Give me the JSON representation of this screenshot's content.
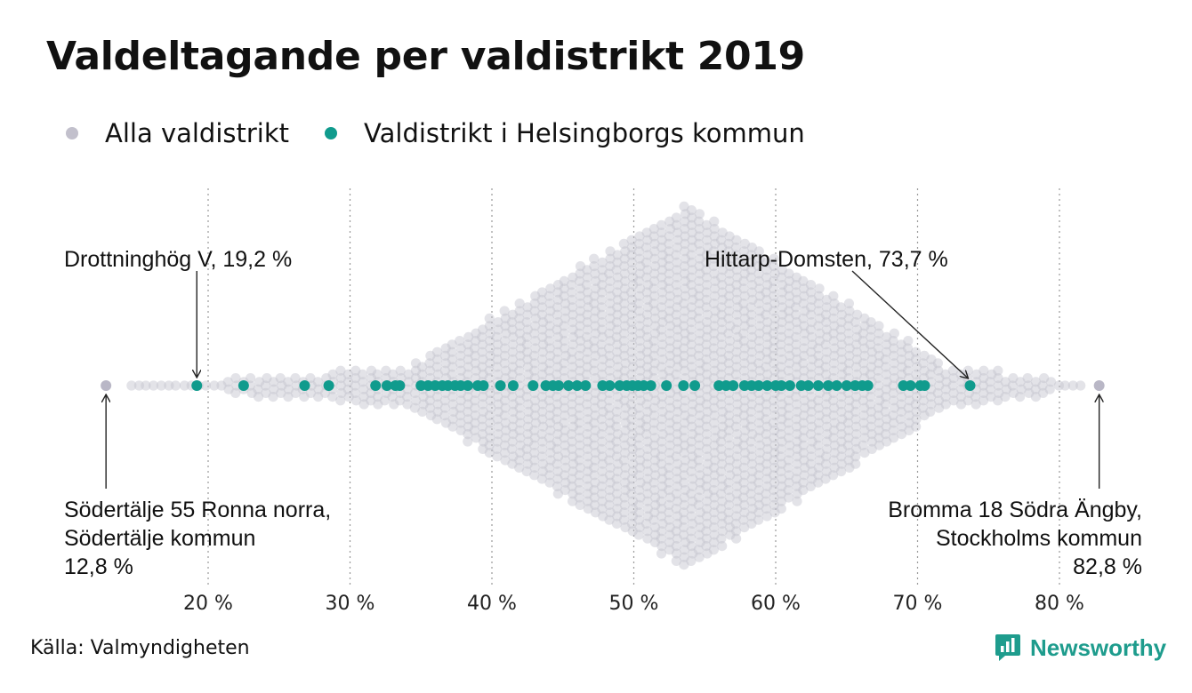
{
  "title": "Valdeltagande per valdistrikt 2019",
  "legend": [
    {
      "label": "Alla valdistrikt",
      "color": "#c2c0cc"
    },
    {
      "label": "Valdistrikt i Helsingborgs kommun",
      "color": "#109b8d"
    }
  ],
  "source": "Källa: Valmyndigheten",
  "brand": "Newsworthy",
  "chart_data": {
    "type": "scatter",
    "subtype": "beeswarm",
    "x_unit": "%",
    "xlim": [
      10,
      85
    ],
    "x_ticks": [
      {
        "value": 20,
        "label": "20 %"
      },
      {
        "value": 30,
        "label": "30 %"
      },
      {
        "value": 40,
        "label": "40 %"
      },
      {
        "value": 50,
        "label": "50 %"
      },
      {
        "value": 60,
        "label": "60 %"
      },
      {
        "value": 70,
        "label": "70 %"
      },
      {
        "value": 80,
        "label": "80 %"
      }
    ],
    "grid_x": true,
    "legend_position": "top-left",
    "series": [
      {
        "name": "Alla valdistrikt",
        "color": "#c2c0cc",
        "min": 12.8,
        "max": 82.8,
        "peak": 53.8,
        "peak_height_points": 26
      },
      {
        "name": "Valdistrikt i Helsingborgs kommun",
        "color": "#109b8d",
        "values": [
          19.2,
          22.5,
          26.8,
          28.5,
          31.8,
          32.6,
          33.2,
          33.5,
          35.0,
          35.5,
          36.0,
          36.5,
          36.9,
          37.4,
          37.8,
          38.3,
          39.0,
          39.4,
          40.6,
          41.5,
          42.9,
          43.8,
          44.3,
          44.7,
          45.4,
          46.0,
          46.6,
          47.8,
          48.3,
          49.0,
          49.5,
          49.9,
          50.3,
          50.7,
          51.2,
          52.3,
          53.5,
          54.3,
          56.0,
          56.5,
          57.0,
          57.8,
          58.3,
          58.8,
          59.4,
          60.0,
          60.4,
          61.0,
          61.8,
          62.3,
          63.0,
          63.7,
          64.3,
          65.0,
          65.6,
          66.1,
          66.5,
          69.0,
          69.5,
          70.2,
          70.5,
          73.7
        ]
      }
    ],
    "annotations": [
      {
        "lines": [
          "Drottninghög V, 19,2 %"
        ],
        "x": 19.2,
        "align": "left",
        "position": "above"
      },
      {
        "lines": [
          "Hittarp-Domsten, 73,7 %"
        ],
        "x": 73.7,
        "align": "left",
        "position": "above"
      },
      {
        "lines": [
          "Södertälje 55 Ronna norra,",
          "Södertälje kommun",
          "12,8 %"
        ],
        "x": 12.8,
        "align": "left",
        "position": "below"
      },
      {
        "lines": [
          "Bromma 18 Södra Ängby,",
          "Stockholms kommun",
          "82,8 %"
        ],
        "x": 82.8,
        "align": "right",
        "position": "below"
      }
    ]
  }
}
